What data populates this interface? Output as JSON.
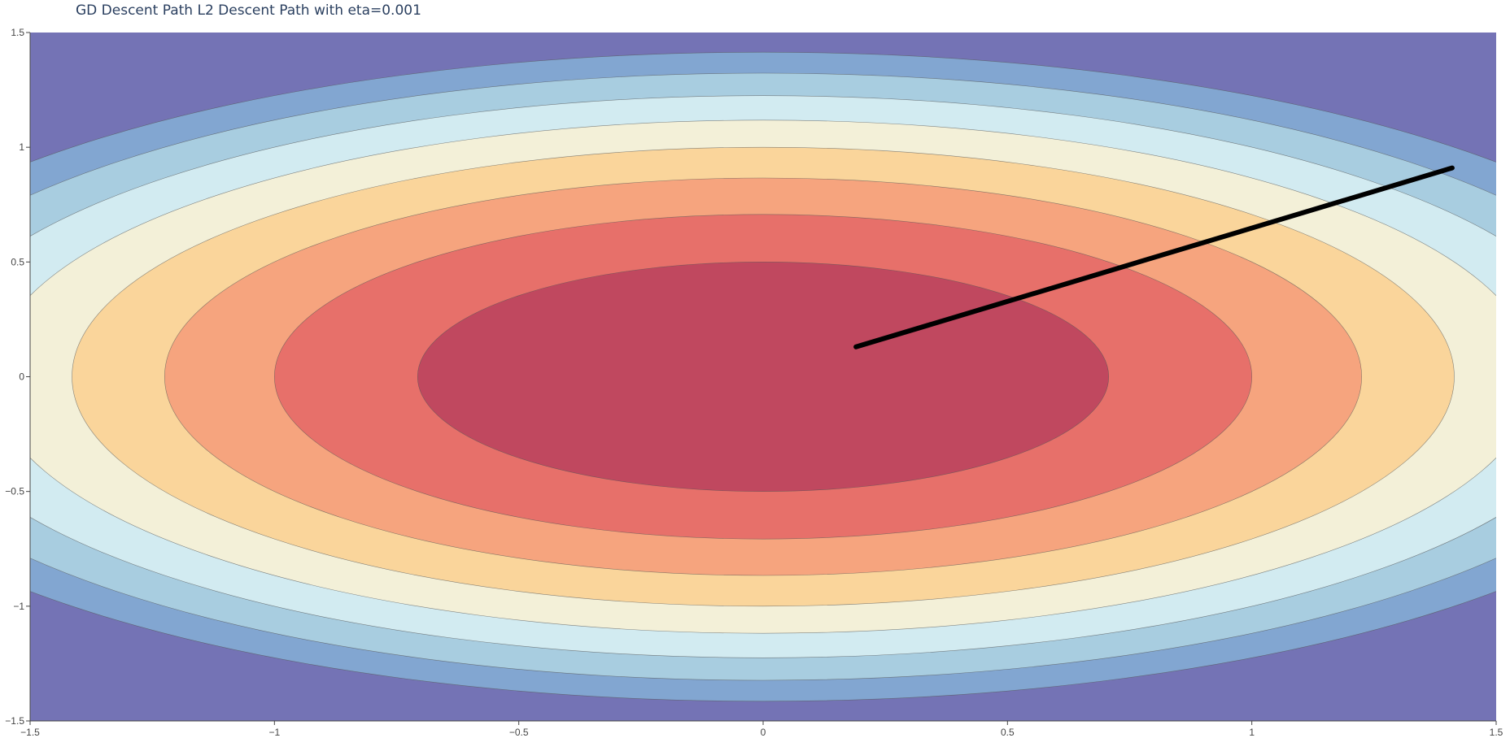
{
  "chart_data": {
    "type": "contour",
    "title": "GD Descent Path L2 Descent Path with eta=0.001",
    "xlabel": "",
    "ylabel": "",
    "xlim": [
      -1.5,
      1.5
    ],
    "ylim": [
      -1.5,
      1.5
    ],
    "x_ticks": [
      -1.5,
      -1,
      -0.5,
      0,
      0.5,
      1,
      1.5
    ],
    "x_tick_labels": [
      "−1.5",
      "−1",
      "−0.5",
      "0",
      "0.5",
      "1",
      "1.5"
    ],
    "y_ticks": [
      -1.5,
      -1,
      -0.5,
      0,
      0.5,
      1,
      1.5
    ],
    "y_tick_labels": [
      "−1.5",
      "−1",
      "−0.5",
      "0",
      "0.5",
      "1",
      "1.5"
    ],
    "grid": false,
    "legend": "none",
    "contour": {
      "function": "f(x, y) = x^2 + 2*y^2",
      "levels": [
        0.5,
        1.0,
        1.5,
        2.0,
        2.5,
        3.0,
        3.5,
        4.0
      ],
      "colors": [
        "#c0485f",
        "#e7706a",
        "#f6a47e",
        "#fad59b",
        "#f3f0d8",
        "#d2ebf1",
        "#a8cde0",
        "#82a6d1",
        "#7473b5"
      ],
      "line_color": "#555555"
    },
    "series": [
      {
        "type": "line",
        "color": "#000000",
        "x": [
          1.41,
          0.19
        ],
        "y": [
          0.91,
          0.13
        ]
      }
    ]
  }
}
